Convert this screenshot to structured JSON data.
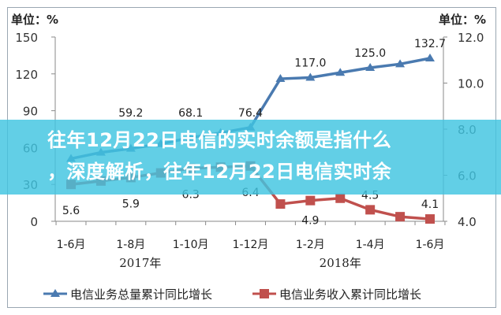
{
  "chart_data": {
    "type": "line",
    "categories": [
      "1-6月",
      "",
      "1-8月",
      "",
      "1-10月",
      "",
      "1-12月",
      "",
      "1-2月",
      "",
      "1-4月",
      "",
      "1-6月"
    ],
    "year_labels": [
      "2017年",
      "2018年"
    ],
    "left_axis": {
      "unit_label": "单位：%",
      "ylim": [
        0,
        150
      ],
      "ticks": [
        0,
        30,
        60,
        90,
        120,
        150
      ]
    },
    "right_axis": {
      "unit_label": "单位：%",
      "ylim": [
        4.0,
        12.0
      ],
      "ticks": [
        "4.0",
        "6.0",
        "8.0",
        "10.0",
        "12.0"
      ]
    },
    "series": [
      {
        "name": "电信业务总量累计同比增长",
        "axis": "left",
        "color": "#4a7ab0",
        "marker": "triangle",
        "values": [
          51,
          56,
          59.2,
          63,
          68.1,
          72,
          76.4,
          116,
          117.0,
          121,
          125.0,
          128,
          132.7
        ],
        "labels": [
          "",
          "",
          "59.2",
          "",
          "68.1",
          "",
          "76.4",
          "",
          "117.0",
          "",
          "125.0",
          "",
          "132.7"
        ]
      },
      {
        "name": "电信业务收入累计同比增长",
        "axis": "right",
        "color": "#c0504d",
        "marker": "square",
        "values": [
          5.6,
          5.75,
          5.9,
          6.1,
          6.3,
          6.35,
          6.4,
          4.75,
          4.9,
          5.0,
          4.5,
          4.2,
          4.1
        ],
        "labels": [
          "5.6",
          "",
          "5.9",
          "",
          "6.3",
          "",
          "6.4",
          "",
          "4.9",
          "",
          "4.5",
          "",
          "4.1"
        ]
      }
    ],
    "legend": "bottom",
    "grid": false
  },
  "banner": {
    "line1": "往年12月22日电信的实时余额是指什么",
    "line2": "，深度解析，往年12月22日电信实时余"
  }
}
